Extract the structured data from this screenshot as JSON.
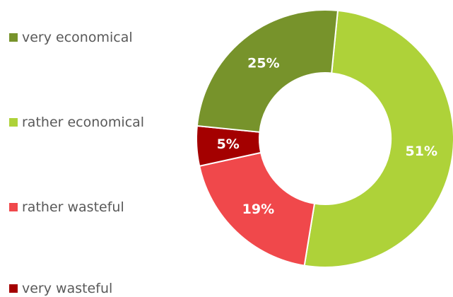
{
  "chart_data": {
    "type": "pie",
    "donut": true,
    "categories": [
      "very economical",
      "rather economical",
      "rather wasteful",
      "very wasteful"
    ],
    "values": [
      25,
      51,
      19,
      5
    ],
    "labels": [
      "25%",
      "51%",
      "19%",
      "5%"
    ],
    "colors": [
      "#77932b",
      "#aed239",
      "#f0484b",
      "#a40000"
    ],
    "legend_position": "left"
  }
}
